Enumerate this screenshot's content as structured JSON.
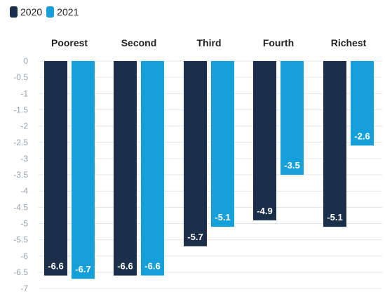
{
  "legend": [
    {
      "label": "2020",
      "color": "#1b2f4b"
    },
    {
      "label": "2021",
      "color": "#16a0d9"
    }
  ],
  "chart_data": {
    "type": "bar",
    "title": "",
    "xlabel": "",
    "ylabel": "",
    "categories": [
      "Poorest",
      "Second",
      "Third",
      "Fourth",
      "Richest"
    ],
    "series": [
      {
        "name": "2020",
        "color": "#1b2f4b",
        "values": [
          -6.6,
          -6.6,
          -5.7,
          -4.9,
          -5.1
        ]
      },
      {
        "name": "2021",
        "color": "#16a0d9",
        "values": [
          -6.7,
          -6.6,
          -5.1,
          -3.5,
          -2.6
        ]
      }
    ],
    "yticks": [
      "0",
      "-0.5",
      "-1",
      "-1.5",
      "-2",
      "-2.5",
      "-3",
      "-3.5",
      "-4",
      "-4.5",
      "-5",
      "-5.5",
      "-6",
      "-6.5",
      "-7"
    ],
    "ylim": [
      -7,
      0
    ],
    "grid": true,
    "legend_position": "top-left",
    "category_labels_position": "top"
  }
}
